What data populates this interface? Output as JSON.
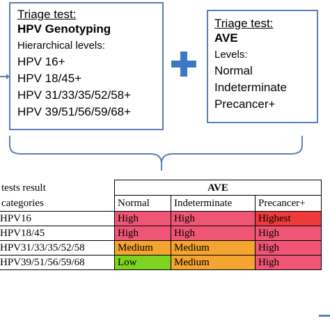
{
  "box1": {
    "title": "Triage test:",
    "name": "HPV Genotyping",
    "subtitle": "Hierarchical levels:",
    "levels": [
      "HPV 16+",
      "HPV 18/45+",
      "HPV 31/33/35/52/58+",
      "HPV 39/51/56/59/68+"
    ]
  },
  "box2": {
    "title": "Triage test:",
    "name": "AVE",
    "subtitle": "Levels:",
    "levels": [
      "Normal",
      "Indeterminate",
      "Precancer+"
    ]
  },
  "table": {
    "header_left_1": "tests result",
    "header_left_2": "categories",
    "ave_header": "AVE",
    "columns": [
      "Normal",
      "Indeterminate",
      "Precancer+"
    ],
    "rows": [
      {
        "category": "HPV16",
        "cells": [
          "High",
          "High",
          "Highest"
        ]
      },
      {
        "category": "HPV18/45",
        "cells": [
          "High",
          "High",
          "High"
        ]
      },
      {
        "category": "HPV31/33/35/52/58",
        "cells": [
          "Medium",
          "Medium",
          "High"
        ]
      },
      {
        "category": "HPV39/51/56/59/68",
        "cells": [
          "Low",
          "Medium",
          "High"
        ]
      }
    ]
  },
  "colors": {
    "box_border": "#5b7fb0",
    "plus": "#3d78c4",
    "Highest": "#ee3a3a",
    "High": "#ef5676",
    "Medium": "#f4a431",
    "Low": "#7ed321"
  }
}
